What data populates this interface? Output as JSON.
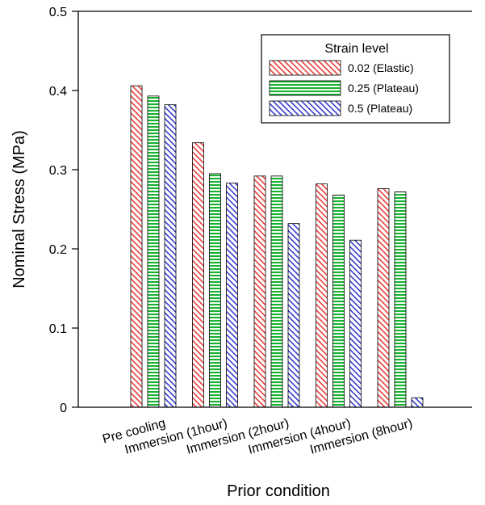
{
  "chart_data": {
    "type": "bar",
    "title": "",
    "xlabel": "Prior condition",
    "ylabel": "Nominal Stress (MPa)",
    "ylim": [
      0,
      0.5
    ],
    "yticks": [
      0,
      0.1,
      0.2,
      0.3,
      0.4,
      0.5
    ],
    "ytick_labels": [
      "0",
      "0.1",
      "0.2",
      "0.3",
      "0.4",
      "0.5"
    ],
    "categories": [
      "Pre cooling",
      "Immersion (1hour)",
      "Immersion (2hour)",
      "Immersion (4hour)",
      "Immersion (8hour)"
    ],
    "legend_title": "Strain level",
    "legend_position": "top-right",
    "grid": false,
    "series": [
      {
        "name": "0.02 (Elastic)",
        "color": "#e8342f",
        "pattern": "diagonal",
        "values": [
          0.406,
          0.334,
          0.292,
          0.282,
          0.276
        ]
      },
      {
        "name": "0.25 (Plateau)",
        "color": "#17b230",
        "pattern": "horizontal",
        "values": [
          0.393,
          0.295,
          0.292,
          0.268,
          0.272
        ]
      },
      {
        "name": "0.5 (Plateau)",
        "color": "#2d33c8",
        "pattern": "diagonal",
        "values": [
          0.382,
          0.283,
          0.232,
          0.211,
          0.012
        ]
      }
    ]
  }
}
